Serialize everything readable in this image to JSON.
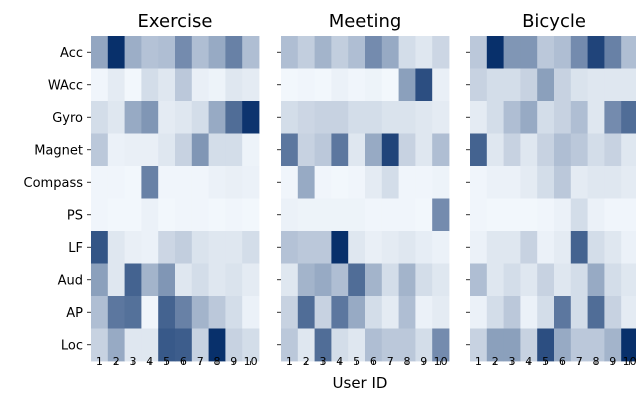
{
  "chart_data": {
    "type": "heatmap",
    "xlabel": "User ID",
    "x_categories": [
      "1",
      "2",
      "3",
      "4",
      "5",
      "6",
      "7",
      "8",
      "9",
      "10"
    ],
    "y_categories": [
      "Acc",
      "WAcc",
      "Gyro",
      "Magnet",
      "Compass",
      "PS",
      "LF",
      "Aud",
      "AP",
      "Loc"
    ],
    "colormap": {
      "low": "#f7fbff",
      "high": "#08306b"
    },
    "colorbar": false,
    "panels": [
      {
        "title": "Exercise",
        "values": [
          [
            0.42,
            1.0,
            0.38,
            0.28,
            0.3,
            0.55,
            0.3,
            0.4,
            0.6,
            0.3
          ],
          [
            0.03,
            0.08,
            0.02,
            0.15,
            0.1,
            0.25,
            0.06,
            0.04,
            0.1,
            0.08
          ],
          [
            0.15,
            0.1,
            0.4,
            0.5,
            0.08,
            0.1,
            0.15,
            0.4,
            0.7,
            0.98
          ],
          [
            0.25,
            0.05,
            0.06,
            0.06,
            0.1,
            0.2,
            0.5,
            0.15,
            0.15,
            0.04
          ],
          [
            0.03,
            0.03,
            0.02,
            0.6,
            0.03,
            0.03,
            0.03,
            0.05,
            0.06,
            0.05
          ],
          [
            0.03,
            0.02,
            0.02,
            0.05,
            0.02,
            0.03,
            0.03,
            0.02,
            0.03,
            0.02
          ],
          [
            0.82,
            0.1,
            0.06,
            0.05,
            0.18,
            0.22,
            0.12,
            0.1,
            0.1,
            0.15
          ],
          [
            0.45,
            0.1,
            0.75,
            0.35,
            0.5,
            0.1,
            0.15,
            0.1,
            0.12,
            0.08
          ],
          [
            0.3,
            0.65,
            0.68,
            0.03,
            0.75,
            0.6,
            0.35,
            0.25,
            0.15,
            0.05
          ],
          [
            0.2,
            0.4,
            0.1,
            0.1,
            0.8,
            0.78,
            0.2,
            1.0,
            0.2,
            0.15
          ]
        ]
      },
      {
        "title": "Meeting",
        "values": [
          [
            0.3,
            0.22,
            0.35,
            0.22,
            0.3,
            0.55,
            0.4,
            0.15,
            0.1,
            0.18
          ],
          [
            0.02,
            0.03,
            0.02,
            0.05,
            0.03,
            0.04,
            0.02,
            0.45,
            0.85,
            0.06
          ],
          [
            0.15,
            0.18,
            0.2,
            0.2,
            0.15,
            0.15,
            0.12,
            0.12,
            0.1,
            0.08
          ],
          [
            0.65,
            0.2,
            0.25,
            0.65,
            0.1,
            0.4,
            0.9,
            0.2,
            0.1,
            0.3
          ],
          [
            0.03,
            0.4,
            0.03,
            0.02,
            0.03,
            0.08,
            0.15,
            0.03,
            0.03,
            0.04
          ],
          [
            0.05,
            0.04,
            0.04,
            0.04,
            0.04,
            0.03,
            0.03,
            0.03,
            0.02,
            0.55
          ],
          [
            0.28,
            0.25,
            0.25,
            1.0,
            0.1,
            0.06,
            0.08,
            0.1,
            0.07,
            0.05
          ],
          [
            0.1,
            0.35,
            0.4,
            0.3,
            0.7,
            0.35,
            0.15,
            0.35,
            0.15,
            0.1
          ],
          [
            0.2,
            0.7,
            0.2,
            0.65,
            0.4,
            0.15,
            0.08,
            0.3,
            0.05,
            0.08
          ],
          [
            0.25,
            0.1,
            0.7,
            0.15,
            0.1,
            0.3,
            0.25,
            0.25,
            0.15,
            0.55
          ]
        ]
      },
      {
        "title": "Bicycle",
        "values": [
          [
            0.25,
            1.0,
            0.5,
            0.5,
            0.25,
            0.3,
            0.55,
            0.9,
            0.6,
            0.3
          ],
          [
            0.2,
            0.15,
            0.15,
            0.2,
            0.45,
            0.2,
            0.12,
            0.1,
            0.1,
            0.1
          ],
          [
            0.08,
            0.15,
            0.3,
            0.4,
            0.15,
            0.2,
            0.3,
            0.1,
            0.55,
            0.7
          ],
          [
            0.75,
            0.1,
            0.2,
            0.1,
            0.2,
            0.3,
            0.25,
            0.15,
            0.2,
            0.1
          ],
          [
            0.03,
            0.05,
            0.05,
            0.08,
            0.15,
            0.25,
            0.08,
            0.1,
            0.1,
            0.08
          ],
          [
            0.03,
            0.02,
            0.02,
            0.02,
            0.03,
            0.05,
            0.15,
            0.05,
            0.03,
            0.03
          ],
          [
            0.05,
            0.1,
            0.1,
            0.2,
            0.05,
            0.08,
            0.75,
            0.15,
            0.1,
            0.05
          ],
          [
            0.3,
            0.1,
            0.15,
            0.1,
            0.2,
            0.1,
            0.15,
            0.4,
            0.15,
            0.1
          ],
          [
            0.05,
            0.15,
            0.25,
            0.05,
            0.15,
            0.65,
            0.15,
            0.7,
            0.2,
            0.08
          ],
          [
            0.2,
            0.45,
            0.45,
            0.2,
            0.85,
            0.4,
            0.25,
            0.25,
            0.35,
            1.0
          ]
        ]
      }
    ]
  }
}
